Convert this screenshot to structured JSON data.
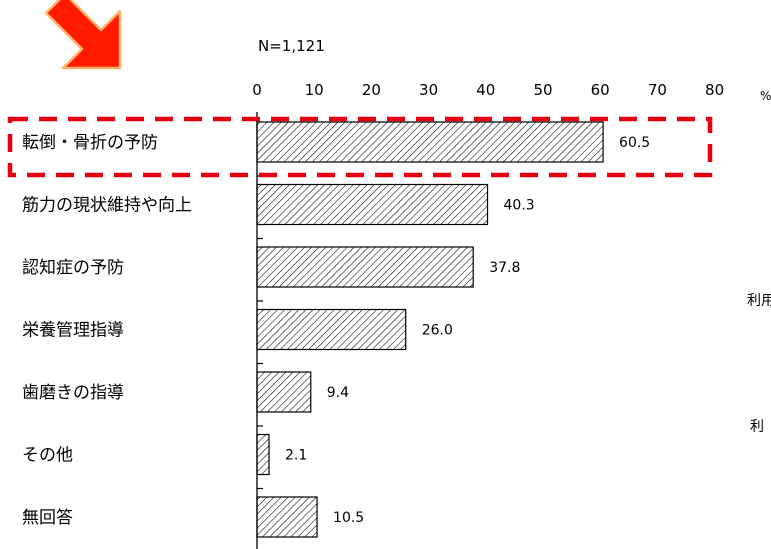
{
  "chart_data": {
    "type": "bar",
    "orientation": "horizontal",
    "sample_size": "N=1,121",
    "unit": "%",
    "categories": [
      "転倒・骨折の予防",
      "筋力の現状維持や向上",
      "認知症の予防",
      "栄養管理指導",
      "歯磨きの指導",
      "その他",
      "無回答"
    ],
    "values": [
      60.5,
      40.3,
      37.8,
      26.0,
      9.4,
      2.1,
      10.5
    ],
    "value_labels": [
      "60.5",
      "40.3",
      "37.8",
      "26.0",
      "9.4",
      "2.1",
      "10.5"
    ],
    "xlim": [
      0,
      80
    ],
    "x_ticks": [
      0,
      10,
      20,
      30,
      40,
      50,
      60,
      70,
      80
    ],
    "grid": false,
    "bar_fill": "diagonal-hatch",
    "highlight_index": 0,
    "highlight_color": "#e60012",
    "arrow_color": "#ff1a00",
    "arrow_edge_color": "#ffb36b"
  },
  "clipped_side_labels": [
    "利用",
    "利"
  ]
}
